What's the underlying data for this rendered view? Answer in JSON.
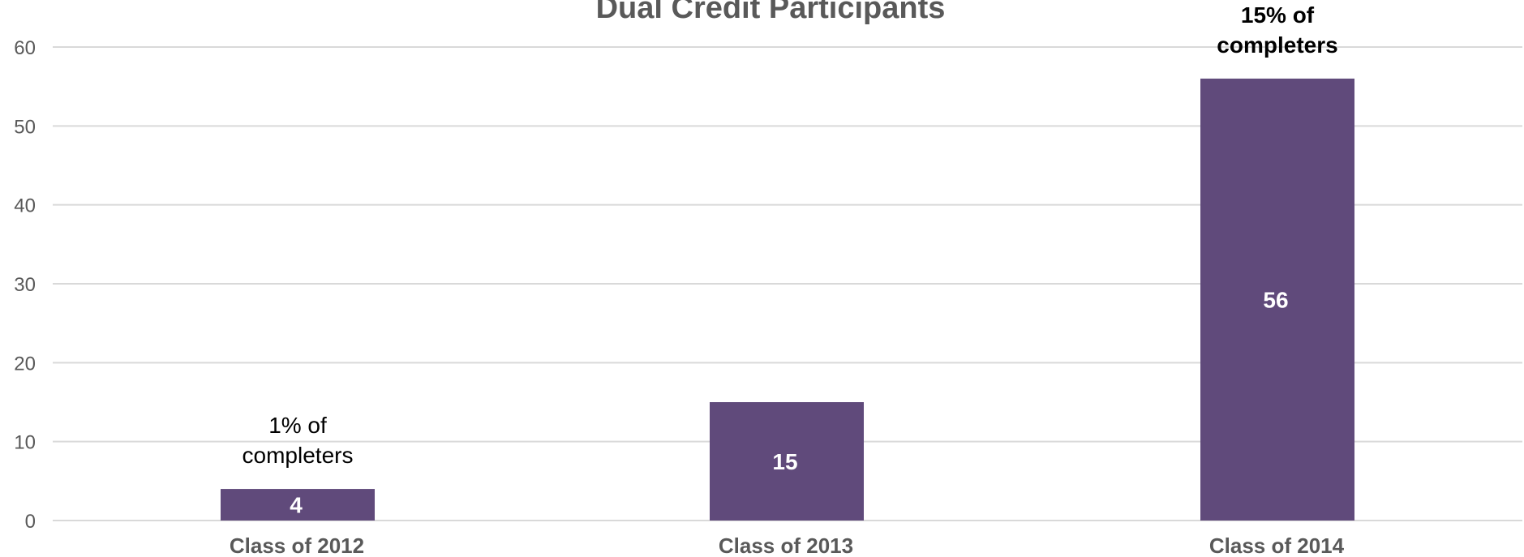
{
  "chart_data": {
    "type": "bar",
    "title": "Dual Credit Participants",
    "categories": [
      "Class of 2012",
      "Class of 2013",
      "Class of 2014"
    ],
    "values": [
      4,
      15,
      56
    ],
    "ylim": [
      0,
      60
    ],
    "yticks": [
      0,
      10,
      20,
      30,
      40,
      50,
      60
    ],
    "grid": true,
    "bar_color": "#604a7b",
    "annotations": [
      {
        "category": "Class of 2012",
        "lines": [
          "1% of",
          "completers"
        ],
        "bold": false
      },
      {
        "category": "Class of 2014",
        "lines": [
          "15% of",
          "completers"
        ],
        "bold": true
      }
    ]
  }
}
